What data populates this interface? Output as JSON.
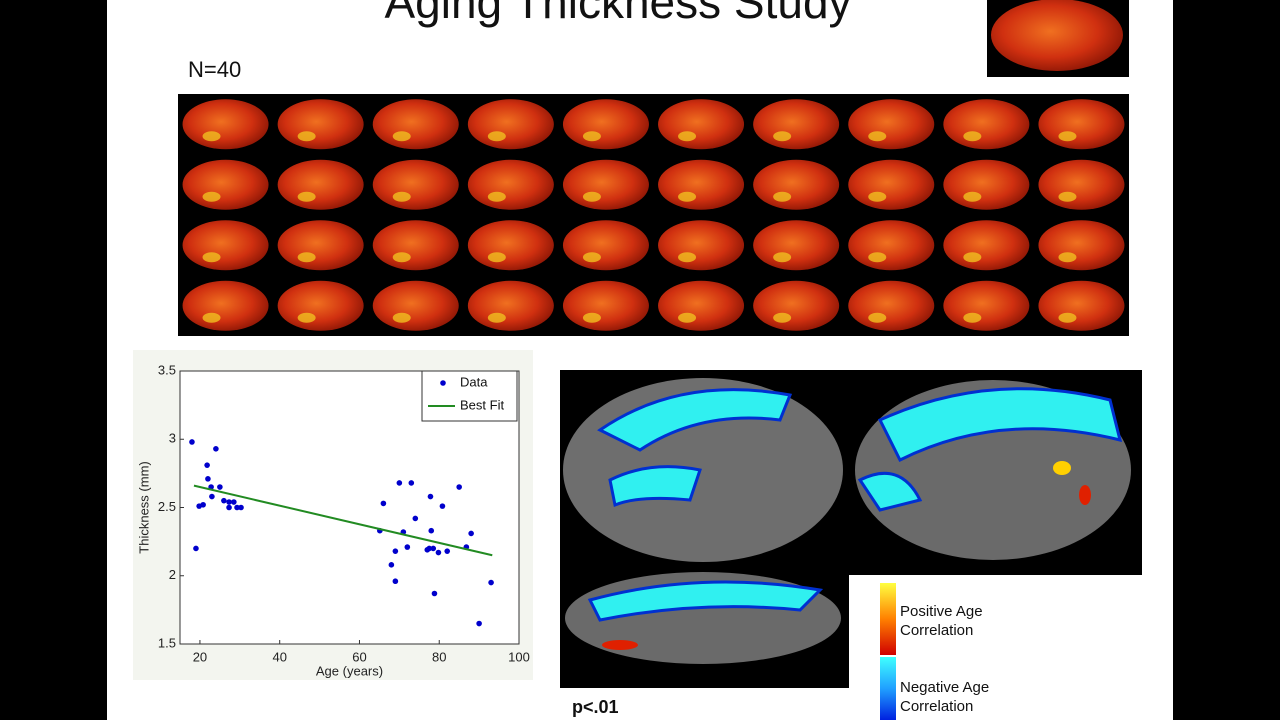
{
  "title": "Aging Thickness Study",
  "sample_size_label": "N=40",
  "significance": "p<.01",
  "colorbar_labels": [
    "Positive Age Correlation",
    "Negative Age Correlation"
  ],
  "chart_data": {
    "type": "scatter",
    "xlabel": "Age (years)",
    "ylabel": "Thickness (mm)",
    "xlim": [
      15,
      100
    ],
    "ylim": [
      1.5,
      3.5
    ],
    "xticks": [
      20,
      40,
      60,
      80,
      100
    ],
    "yticks": [
      1.5,
      2,
      2.5,
      3,
      3.5
    ],
    "legend": "northeast",
    "series": [
      {
        "name": "Data",
        "color": "#0000cc",
        "style": "markers",
        "x": [
          18,
          19,
          19.8,
          20.8,
          21.8,
          22,
          22.8,
          23,
          24,
          25,
          26,
          27.3,
          27.3,
          28.5,
          29.3,
          30.3,
          65.1,
          66,
          68,
          69,
          69,
          70,
          71,
          72,
          73,
          74,
          77,
          77.5,
          77.8,
          78,
          78.5,
          78.8,
          79.8,
          80.8,
          82,
          85,
          86.8,
          88,
          90,
          93
        ],
        "values": [
          2.98,
          2.2,
          2.51,
          2.52,
          2.81,
          2.71,
          2.65,
          2.58,
          2.93,
          2.65,
          2.55,
          2.54,
          2.5,
          2.54,
          2.5,
          2.5,
          2.33,
          2.53,
          2.08,
          2.18,
          1.96,
          2.68,
          2.32,
          2.21,
          2.68,
          2.42,
          2.19,
          2.2,
          2.58,
          2.33,
          2.2,
          1.87,
          2.17,
          2.51,
          2.18,
          2.65,
          2.21,
          2.31,
          1.65,
          1.95
        ]
      },
      {
        "name": "Best Fit",
        "color": "#228b22",
        "style": "line",
        "x": [
          18.5,
          93.3
        ],
        "values": [
          2.66,
          2.15
        ]
      }
    ]
  }
}
